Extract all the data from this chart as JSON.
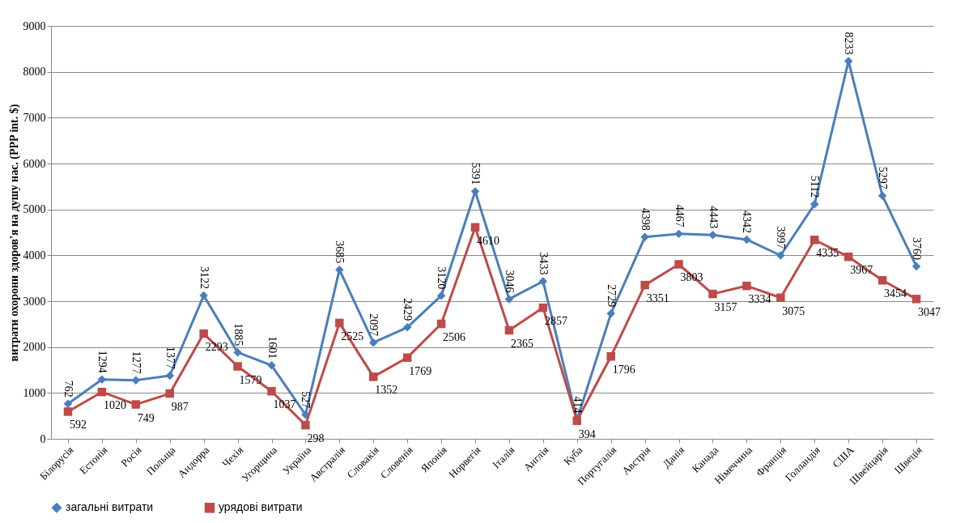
{
  "chart_data": {
    "type": "line",
    "ylabel": "витрати охорони здоров'я на душу нас. (PPP int. $)",
    "categories": [
      "Білорусія",
      "Естонія",
      "Росія",
      "Польща",
      "Андорра",
      "Чехія",
      "Угорщина",
      "Україна",
      "Австралія",
      "Словакія",
      "Словенія",
      "Японія",
      "Норвегія",
      "Італія",
      "Англія",
      "Куба",
      "Португалія",
      "Австрія",
      "Данія",
      "Канада",
      "Німеччина",
      "Франція",
      "Голландія",
      "США",
      "Швейцарія",
      "Швеція"
    ],
    "series": [
      {
        "name": "загальні витрати",
        "color": "#4a7ebb",
        "marker": "diamond",
        "values": [
          762,
          1294,
          1277,
          1377,
          3122,
          1885,
          1601,
          527,
          3685,
          2097,
          2429,
          3120,
          5391,
          3046,
          3433,
          414,
          2729,
          4398,
          4467,
          4443,
          4342,
          3997,
          5112,
          8233,
          5297,
          3760
        ]
      },
      {
        "name": "урядові витрати",
        "color": "#be4b48",
        "marker": "square",
        "values": [
          592,
          1020,
          749,
          987,
          2293,
          1579,
          1037,
          298,
          2525,
          1352,
          1769,
          2506,
          4610,
          2365,
          2857,
          394,
          1796,
          3351,
          3803,
          3157,
          3334,
          3075,
          4335,
          3967,
          3454,
          3047
        ]
      }
    ],
    "ylim": [
      0,
      9000
    ],
    "yticks": [
      0,
      1000,
      2000,
      3000,
      4000,
      5000,
      6000,
      7000,
      8000,
      9000
    ],
    "grid": "y",
    "legend": "bottom",
    "data_labels": true,
    "line_style": "solid"
  }
}
